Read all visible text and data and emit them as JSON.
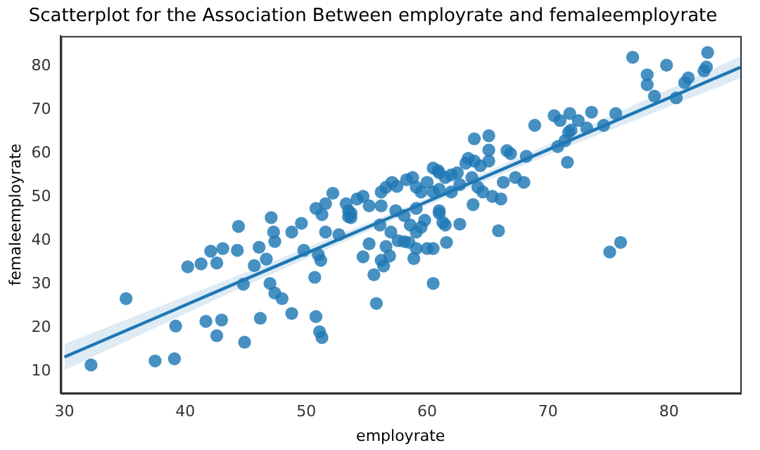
{
  "chart_data": {
    "type": "scatter",
    "title": "Scatterplot for the Association Between employrate and femaleemployrate",
    "xlabel": "employrate",
    "ylabel": "femaleemployrate",
    "xlim": [
      29.7,
      85.9
    ],
    "ylim": [
      5,
      87
    ],
    "xticks": [
      30,
      40,
      50,
      60,
      70,
      80
    ],
    "yticks": [
      10,
      20,
      30,
      40,
      50,
      60,
      70,
      80
    ],
    "grid": false,
    "legend": false,
    "series": [
      {
        "color": "#1f77b4",
        "marker": "circle",
        "x": [
          32.2,
          35.1,
          37.5,
          39.1,
          39.2,
          40.2,
          41.3,
          42.1,
          43.1,
          44.3,
          42.6,
          41.7,
          43,
          42.6,
          44.9,
          44.4,
          44.8,
          45.7,
          46.1,
          46.7,
          47,
          47.4,
          48,
          46.2,
          47.3,
          47.4,
          47.1,
          48.8,
          48.8,
          49.6,
          49.8,
          50.7,
          50.8,
          51.1,
          51.3,
          51,
          51.2,
          51.6,
          51.3,
          52.7,
          53.5,
          53.7,
          55.2,
          54.7,
          55.6,
          55.8,
          56.2,
          56.4,
          56.9,
          56.6,
          57,
          56.1,
          57.6,
          58.1,
          58.5,
          59.1,
          60,
          60.5,
          58.9,
          60.5,
          59.1,
          59.5,
          61.6,
          50.8,
          52.2,
          51.6,
          53.3,
          54.2,
          54.7,
          55.2,
          56.2,
          56.6,
          57.1,
          57.5,
          58.3,
          58.8,
          59.1,
          59.5,
          60,
          60.5,
          60.9,
          61.5,
          53.7,
          53.5,
          56.2,
          57.4,
          58.1,
          59.1,
          59.8,
          61,
          61.3,
          58.6,
          60.5,
          61,
          62,
          62.5,
          63.4,
          63.2,
          63.9,
          64.4,
          65.1,
          63.7,
          64.2,
          64.6,
          65.4,
          66.1,
          66.3,
          67.3,
          68,
          61,
          62,
          62.7,
          63.9,
          65.1,
          65.1,
          66.6,
          66.9,
          68.2,
          63.8,
          65.9,
          61.5,
          62.7,
          61,
          68.9,
          70.5,
          71,
          71.8,
          72.5,
          73.6,
          73.2,
          71.9,
          71.7,
          74.6,
          75.6,
          70.8,
          71.4,
          71.6,
          77,
          78.2,
          78.2,
          79.8,
          78.8,
          80.6,
          81.3,
          81.6,
          82.9,
          83.1,
          83.2,
          75.1,
          76
        ],
        "values": [
          11.5,
          26.7,
          12.4,
          12.9,
          20.4,
          34,
          34.7,
          37.6,
          38.2,
          37.8,
          34.9,
          21.5,
          21.8,
          18.2,
          16.7,
          43.3,
          30,
          34.3,
          38.5,
          35.8,
          30.2,
          28,
          26.7,
          22.2,
          42,
          39.8,
          45.3,
          42,
          23.3,
          44,
          37.8,
          31.6,
          22.6,
          19.1,
          17.8,
          36.8,
          35.5,
          42,
          46,
          41.4,
          45.5,
          46.3,
          39.3,
          36.3,
          32.2,
          25.6,
          35.5,
          34.2,
          36.5,
          38.7,
          42,
          43.6,
          40,
          39.8,
          39.6,
          38.2,
          38.2,
          38.2,
          35.9,
          30.2,
          42,
          43.1,
          39.6,
          47.4,
          50.9,
          48.5,
          48.5,
          49.6,
          50.2,
          48,
          51.2,
          52.3,
          53.4,
          52.5,
          54,
          54.5,
          52.3,
          51.2,
          53.4,
          51.2,
          56.1,
          54.5,
          45.3,
          46.9,
          48,
          46.9,
          45.8,
          47.4,
          44.7,
          46.3,
          44.2,
          43.6,
          56.7,
          55.6,
          55.1,
          55.6,
          58.9,
          57.8,
          58.3,
          57.2,
          58.3,
          54.5,
          52.3,
          51.2,
          50.2,
          49.6,
          53.4,
          54.5,
          53.4,
          51.8,
          51.2,
          52.9,
          63.4,
          64.1,
          60.8,
          60.7,
          60,
          59.4,
          48.3,
          42.3,
          43.6,
          43.8,
          46.9,
          66.5,
          68.7,
          67.6,
          69.2,
          67.6,
          69.5,
          65.9,
          65.4,
          64.9,
          66.5,
          69.2,
          61.6,
          63,
          58,
          82.1,
          78.1,
          75.8,
          80.3,
          73.2,
          72.8,
          76.3,
          77.4,
          79,
          79.9,
          83.2,
          37.4,
          39.6
        ]
      },
      {
        "type": "line",
        "color": "#1f77b4",
        "marker": "none",
        "x": [
          30,
          45,
          58,
          70,
          85.9
        ],
        "values": [
          13.3,
          31.2,
          46.6,
          60.9,
          79.8
        ],
        "lower": [
          10.3,
          29.7,
          45.8,
          59.7,
          77.3
        ],
        "upper": [
          16.3,
          32.7,
          47.4,
          62.1,
          82.3
        ]
      }
    ]
  }
}
